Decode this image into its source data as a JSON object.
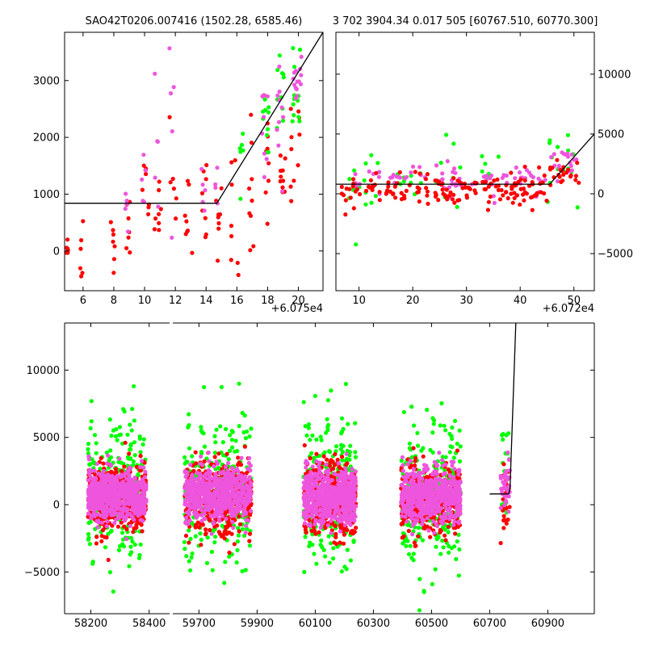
{
  "chart_data": [
    {
      "type": "scatter",
      "title": "SAO42T0206.007416 (1502.28, 6585.46)",
      "offset_label": "+6.075e4",
      "xlim": [
        4.8,
        21.6
      ],
      "ylim": [
        -700,
        3850
      ],
      "xticks": [
        6,
        8,
        10,
        12,
        14,
        16,
        18,
        20
      ],
      "yticks": [
        0,
        1000,
        2000,
        3000
      ],
      "xtick_labels": [
        "6",
        "8",
        "10",
        "12",
        "14",
        "16",
        "18",
        "20"
      ],
      "ytick_labels": [
        "0",
        "1000",
        "2000",
        "3000"
      ],
      "model_line": {
        "x": [
          4.8,
          14.7,
          21.6
        ],
        "y": [
          840,
          840,
          3850
        ]
      },
      "series": [
        {
          "color": "#ff0000",
          "seed": 11,
          "clusters": [
            {
              "x0": 4.9,
              "x1": 5.1,
              "n": 6,
              "ymean": 100,
              "ysd": 150
            },
            {
              "x0": 5.8,
              "x1": 6.0,
              "n": 6,
              "ymean": 100,
              "ysd": 450
            },
            {
              "x0": 7.8,
              "x1": 8.1,
              "n": 7,
              "ymean": 200,
              "ysd": 250
            },
            {
              "x0": 8.7,
              "x1": 9.1,
              "n": 8,
              "ymean": 300,
              "ysd": 400
            },
            {
              "x0": 9.8,
              "x1": 10.3,
              "n": 8,
              "ymean": 1100,
              "ysd": 350
            },
            {
              "x0": 10.6,
              "x1": 11.1,
              "n": 8,
              "ymean": 700,
              "ysd": 400
            },
            {
              "x0": 11.6,
              "x1": 12.1,
              "n": 8,
              "ymean": 800,
              "ysd": 700
            },
            {
              "x0": 12.6,
              "x1": 13.1,
              "n": 8,
              "ymean": 700,
              "ysd": 500
            },
            {
              "x0": 13.7,
              "x1": 14.1,
              "n": 8,
              "ymean": 600,
              "ysd": 500
            },
            {
              "x0": 14.6,
              "x1": 15.0,
              "n": 8,
              "ymean": 400,
              "ysd": 500
            },
            {
              "x0": 15.6,
              "x1": 16.1,
              "n": 8,
              "ymean": 500,
              "ysd": 700
            },
            {
              "x0": 16.6,
              "x1": 17.1,
              "n": 9,
              "ymean": 1000,
              "ysd": 600
            },
            {
              "x0": 17.7,
              "x1": 18.1,
              "n": 10,
              "ymean": 1400,
              "ysd": 500
            },
            {
              "x0": 18.7,
              "x1": 19.2,
              "n": 10,
              "ymean": 1300,
              "ysd": 300
            },
            {
              "x0": 19.5,
              "x1": 20.1,
              "n": 10,
              "ymean": 1800,
              "ysd": 500
            }
          ]
        },
        {
          "color": "#00ff00",
          "seed": 23,
          "clusters": [
            {
              "x0": 16.2,
              "x1": 16.6,
              "n": 6,
              "ymean": 1700,
              "ysd": 500
            },
            {
              "x0": 17.6,
              "x1": 18.1,
              "n": 10,
              "ymean": 2300,
              "ysd": 400
            },
            {
              "x0": 18.6,
              "x1": 19.1,
              "n": 10,
              "ymean": 2700,
              "ysd": 500
            },
            {
              "x0": 19.6,
              "x1": 20.2,
              "n": 12,
              "ymean": 2700,
              "ysd": 500
            }
          ]
        },
        {
          "color": "#ee55dd",
          "seed": 37,
          "clusters": [
            {
              "x0": 8.7,
              "x1": 9.0,
              "n": 5,
              "ymean": 800,
              "ysd": 300
            },
            {
              "x0": 9.7,
              "x1": 10.1,
              "n": 5,
              "ymean": 1400,
              "ysd": 500
            },
            {
              "x0": 10.4,
              "x1": 10.9,
              "n": 5,
              "ymean": 1600,
              "ysd": 900
            },
            {
              "x0": 11.5,
              "x1": 11.9,
              "n": 5,
              "ymean": 2500,
              "ysd": 900
            },
            {
              "x0": 13.6,
              "x1": 14.0,
              "n": 5,
              "ymean": 900,
              "ysd": 300
            },
            {
              "x0": 14.6,
              "x1": 15.0,
              "n": 4,
              "ymean": 1200,
              "ysd": 300
            },
            {
              "x0": 17.6,
              "x1": 18.1,
              "n": 8,
              "ymean": 2100,
              "ysd": 500
            },
            {
              "x0": 18.6,
              "x1": 19.1,
              "n": 10,
              "ymean": 2400,
              "ysd": 500
            },
            {
              "x0": 19.6,
              "x1": 20.2,
              "n": 14,
              "ymean": 2900,
              "ysd": 300
            }
          ]
        }
      ]
    },
    {
      "type": "scatter",
      "title": "3 702 3904.34 0.017 505 [60767.510, 60770.300]",
      "offset_label": "+6.072e4",
      "xlim": [
        5.7,
        53.8
      ],
      "ylim": [
        -8100,
        13500
      ],
      "xticks": [
        10,
        20,
        30,
        40,
        50
      ],
      "yticks": [
        -5000,
        0,
        5000,
        10000
      ],
      "xtick_labels": [
        "10",
        "20",
        "30",
        "40",
        "50"
      ],
      "ytick_labels": [
        "−5000",
        "0",
        "5000",
        "10000"
      ],
      "model_line": {
        "x": [
          5.7,
          45.5,
          53.8
        ],
        "y": [
          800,
          800,
          5000
        ]
      },
      "series": [
        {
          "color": "#00ff00",
          "seed": 41,
          "clusters": [
            {
              "x0": 8,
              "x1": 14,
              "n": 18,
              "ymean": 900,
              "ysd": 1400
            },
            {
              "x0": 16,
              "x1": 22,
              "n": 10,
              "ymean": 1000,
              "ysd": 700
            },
            {
              "x0": 24,
              "x1": 31,
              "n": 8,
              "ymean": 1100,
              "ysd": 1500
            },
            {
              "x0": 32,
              "x1": 36,
              "n": 6,
              "ymean": 800,
              "ysd": 1500
            },
            {
              "x0": 45,
              "x1": 51,
              "n": 14,
              "ymean": 2700,
              "ysd": 1500
            }
          ]
        },
        {
          "color": "#ee55dd",
          "seed": 53,
          "clusters": [
            {
              "x0": 9,
              "x1": 14,
              "n": 10,
              "ymean": 1300,
              "ysd": 600
            },
            {
              "x0": 15,
              "x1": 23,
              "n": 14,
              "ymean": 1200,
              "ysd": 500
            },
            {
              "x0": 24,
              "x1": 32,
              "n": 20,
              "ymean": 1300,
              "ysd": 600
            },
            {
              "x0": 33,
              "x1": 38,
              "n": 14,
              "ymean": 1100,
              "ysd": 700
            },
            {
              "x0": 39,
              "x1": 45,
              "n": 16,
              "ymean": 1200,
              "ysd": 500
            },
            {
              "x0": 45.5,
              "x1": 51,
              "n": 18,
              "ymean": 2200,
              "ysd": 700
            }
          ]
        },
        {
          "color": "#ff0000",
          "seed": 67,
          "clusters": [
            {
              "x0": 6,
              "x1": 14,
              "n": 26,
              "ymean": 300,
              "ysd": 700
            },
            {
              "x0": 15,
              "x1": 23,
              "n": 32,
              "ymean": 300,
              "ysd": 600
            },
            {
              "x0": 24,
              "x1": 32,
              "n": 40,
              "ymean": 300,
              "ysd": 700
            },
            {
              "x0": 33,
              "x1": 39,
              "n": 30,
              "ymean": 300,
              "ysd": 700
            },
            {
              "x0": 39,
              "x1": 45,
              "n": 30,
              "ymean": 300,
              "ysd": 700
            },
            {
              "x0": 45.5,
              "x1": 51,
              "n": 22,
              "ymean": 1800,
              "ysd": 800
            }
          ]
        }
      ]
    },
    {
      "type": "scatter",
      "broken_x_axis": true,
      "ylim": [
        -8100,
        13500
      ],
      "yticks": [
        -5000,
        0,
        5000,
        10000
      ],
      "ytick_labels": [
        "−5000",
        "0",
        "5000",
        "10000"
      ],
      "segments": [
        {
          "xlim": [
            58110,
            58470
          ],
          "xticks": [
            58200,
            58400
          ],
          "xtick_labels": [
            "58200",
            "58400"
          ]
        },
        {
          "xlim": [
            59610,
            61060
          ],
          "xticks": [
            59700,
            59900,
            60100,
            60300,
            60500,
            60700,
            60900
          ],
          "xtick_labels": [
            "59700",
            "59900",
            "60100",
            "60300",
            "60500",
            "60700",
            "60900"
          ]
        }
      ],
      "model_line": {
        "x": [
          60700,
          60765,
          60770,
          60790
        ],
        "y": [
          800,
          800,
          1200,
          13500
        ]
      },
      "series": [
        {
          "color": "#00ff00",
          "seed": 71,
          "clusters": [
            {
              "x0": 58190,
              "x1": 58390,
              "n": 260,
              "ymean": 1200,
              "ysd": 2600
            },
            {
              "x0": 59650,
              "x1": 59880,
              "n": 260,
              "ymean": 1000,
              "ysd": 2800
            },
            {
              "x0": 60060,
              "x1": 60240,
              "n": 260,
              "ymean": 1000,
              "ysd": 2800
            },
            {
              "x0": 60395,
              "x1": 60600,
              "n": 260,
              "ymean": 900,
              "ysd": 2800
            },
            {
              "x0": 60738,
              "x1": 60770,
              "n": 18,
              "ymean": 1800,
              "ysd": 1800
            }
          ]
        },
        {
          "color": "#ff0000",
          "seed": 83,
          "clusters": [
            {
              "x0": 58190,
              "x1": 58390,
              "n": 380,
              "ymean": 500,
              "ysd": 1300
            },
            {
              "x0": 59650,
              "x1": 59880,
              "n": 380,
              "ymean": 500,
              "ysd": 1400
            },
            {
              "x0": 60060,
              "x1": 60240,
              "n": 380,
              "ymean": 400,
              "ysd": 1400
            },
            {
              "x0": 60395,
              "x1": 60600,
              "n": 380,
              "ymean": 400,
              "ysd": 1300
            },
            {
              "x0": 60738,
              "x1": 60770,
              "n": 30,
              "ymean": 400,
              "ysd": 1300
            }
          ]
        },
        {
          "color": "#ee55dd",
          "seed": 97,
          "clusters": [
            {
              "x0": 58190,
              "x1": 58390,
              "n": 650,
              "ymean": 600,
              "ysd": 900
            },
            {
              "x0": 59650,
              "x1": 59880,
              "n": 650,
              "ymean": 800,
              "ysd": 1000
            },
            {
              "x0": 60060,
              "x1": 60240,
              "n": 650,
              "ymean": 600,
              "ysd": 1000
            },
            {
              "x0": 60395,
              "x1": 60600,
              "n": 650,
              "ymean": 700,
              "ysd": 900
            },
            {
              "x0": 60738,
              "x1": 60770,
              "n": 40,
              "ymean": 1200,
              "ysd": 900
            }
          ]
        }
      ]
    }
  ]
}
